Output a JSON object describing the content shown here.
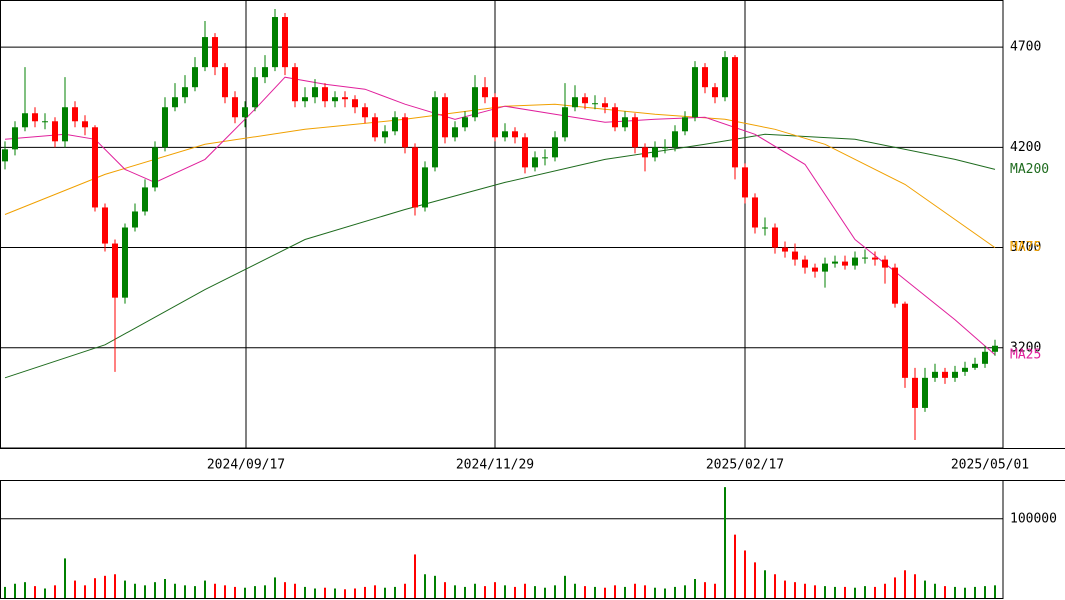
{
  "chart_data": [
    {
      "type": "candlestick",
      "x": [
        0,
        1,
        2,
        3,
        4,
        5,
        6,
        7,
        8,
        9,
        10,
        11,
        12,
        13,
        14,
        15,
        16,
        17,
        18,
        19,
        20,
        21,
        22,
        23,
        24,
        25,
        26,
        27,
        28,
        29,
        30,
        31,
        32,
        33,
        34,
        35,
        36,
        37,
        38,
        39,
        40,
        41,
        42,
        43,
        44,
        45,
        46,
        47,
        48,
        49,
        50,
        51,
        52,
        53,
        54,
        55,
        56,
        57,
        58,
        59,
        60,
        61,
        62,
        63,
        64,
        65,
        66,
        67,
        68,
        69,
        70,
        71,
        72,
        73,
        74,
        75,
        76,
        77,
        78,
        79,
        80,
        81,
        82,
        83,
        84,
        85,
        86,
        87,
        88,
        89,
        90,
        91,
        92,
        93,
        94,
        95,
        96,
        97,
        98,
        99
      ],
      "open": [
        4130,
        4190,
        4300,
        4370,
        4330,
        4330,
        4230,
        4400,
        4330,
        4300,
        3900,
        3720,
        3450,
        3800,
        3880,
        4000,
        4200,
        4400,
        4450,
        4500,
        4600,
        4750,
        4600,
        4450,
        4350,
        4400,
        4550,
        4600,
        4850,
        4600,
        4430,
        4450,
        4500,
        4430,
        4450,
        4440,
        4400,
        4350,
        4250,
        4280,
        4350,
        4200,
        3900,
        4100,
        4450,
        4250,
        4300,
        4350,
        4500,
        4450,
        4250,
        4280,
        4250,
        4100,
        4150,
        4150,
        4250,
        4400,
        4450,
        4420,
        4420,
        4400,
        4300,
        4350,
        4200,
        4150,
        4200,
        4200,
        4280,
        4350,
        4600,
        4500,
        4450,
        4650,
        4100,
        3950,
        3800,
        3800,
        3700,
        3680,
        3640,
        3600,
        3580,
        3620,
        3630,
        3610,
        3650,
        3650,
        3640,
        3600,
        3420,
        3050,
        2900,
        3050,
        3080,
        3050,
        3080,
        3100,
        3120,
        3180
      ],
      "high": [
        4230,
        4330,
        4600,
        4400,
        4370,
        4350,
        4550,
        4430,
        4360,
        4310,
        3920,
        3740,
        3820,
        3920,
        4040,
        4230,
        4450,
        4520,
        4560,
        4650,
        4830,
        4770,
        4620,
        4480,
        4430,
        4600,
        4660,
        4890,
        4870,
        4620,
        4500,
        4540,
        4520,
        4480,
        4480,
        4460,
        4420,
        4370,
        4310,
        4380,
        4370,
        4220,
        4130,
        4480,
        4470,
        4330,
        4380,
        4560,
        4550,
        4470,
        4320,
        4300,
        4270,
        4180,
        4190,
        4280,
        4520,
        4510,
        4470,
        4460,
        4450,
        4420,
        4380,
        4370,
        4220,
        4230,
        4240,
        4310,
        4380,
        4630,
        4620,
        4520,
        4680,
        4660,
        4120,
        3970,
        3850,
        3820,
        3730,
        3720,
        3660,
        3620,
        3650,
        3660,
        3660,
        3680,
        3690,
        3680,
        3660,
        3620,
        3430,
        3100,
        3100,
        3120,
        3100,
        3110,
        3130,
        3150,
        3210,
        3240
      ],
      "low": [
        4090,
        4160,
        4280,
        4300,
        4290,
        4200,
        4200,
        4300,
        4260,
        3880,
        3680,
        3080,
        3420,
        3780,
        3860,
        3980,
        4180,
        4380,
        4420,
        4480,
        4580,
        4560,
        4420,
        4320,
        4300,
        4380,
        4520,
        4580,
        4560,
        4400,
        4400,
        4420,
        4400,
        4400,
        4400,
        4370,
        4320,
        4230,
        4220,
        4260,
        4170,
        3860,
        3880,
        4080,
        4220,
        4230,
        4280,
        4330,
        4420,
        4230,
        4230,
        4220,
        4070,
        4080,
        4110,
        4130,
        4230,
        4380,
        4390,
        4390,
        4370,
        4280,
        4280,
        4170,
        4080,
        4130,
        4170,
        4180,
        4260,
        4330,
        4470,
        4420,
        4430,
        4040,
        3920,
        3770,
        3760,
        3670,
        3650,
        3610,
        3570,
        3550,
        3500,
        3600,
        3590,
        3590,
        3620,
        3610,
        3520,
        3400,
        3000,
        2740,
        2880,
        3030,
        3020,
        3030,
        3060,
        3090,
        3100,
        3160
      ],
      "close": [
        4190,
        4300,
        4370,
        4330,
        4330,
        4230,
        4400,
        4330,
        4300,
        3900,
        3720,
        3450,
        3800,
        3880,
        4000,
        4200,
        4400,
        4450,
        4500,
        4600,
        4750,
        4600,
        4450,
        4350,
        4400,
        4550,
        4600,
        4850,
        4600,
        4430,
        4450,
        4500,
        4430,
        4450,
        4440,
        4400,
        4350,
        4250,
        4280,
        4350,
        4200,
        3900,
        4100,
        4450,
        4250,
        4300,
        4350,
        4500,
        4450,
        4250,
        4280,
        4250,
        4100,
        4150,
        4150,
        4250,
        4400,
        4450,
        4420,
        4420,
        4400,
        4300,
        4350,
        4200,
        4150,
        4200,
        4200,
        4280,
        4350,
        4600,
        4500,
        4450,
        4650,
        4100,
        3950,
        3800,
        3800,
        3700,
        3680,
        3640,
        3600,
        3580,
        3620,
        3630,
        3610,
        3650,
        3650,
        3640,
        3600,
        3420,
        3050,
        2900,
        3050,
        3080,
        3050,
        3080,
        3100,
        3120,
        3180,
        3210
      ],
      "up_color": "#008000",
      "down_color": "#ff0000",
      "series": [
        {
          "name": "MA200",
          "color": "#1e6b1e",
          "x": [
            0,
            10,
            20,
            30,
            40,
            50,
            60,
            70,
            76,
            85,
            95,
            99
          ],
          "values": [
            3050,
            3215,
            3490,
            3740,
            3890,
            4025,
            4140,
            4215,
            4265,
            4240,
            4140,
            4090
          ]
        },
        {
          "name": "MA75",
          "color": "#f0a000",
          "x": [
            0,
            10,
            20,
            30,
            40,
            50,
            55,
            65,
            72,
            77,
            82,
            90,
            95,
            99
          ],
          "values": [
            3865,
            4065,
            4215,
            4290,
            4340,
            4405,
            4415,
            4365,
            4340,
            4290,
            4215,
            4015,
            3840,
            3700
          ]
        },
        {
          "name": "MA25",
          "color": "#e0209c",
          "x": [
            0,
            6,
            9,
            12,
            15,
            20,
            25,
            28,
            32,
            36,
            40,
            45,
            50,
            55,
            60,
            65,
            70,
            75,
            80,
            85,
            90,
            95,
            99
          ],
          "values": [
            4240,
            4265,
            4240,
            4090,
            4025,
            4140,
            4390,
            4550,
            4515,
            4490,
            4415,
            4340,
            4405,
            4365,
            4325,
            4340,
            4350,
            4265,
            4115,
            3740,
            3540,
            3340,
            3165
          ]
        }
      ],
      "xlim": [
        -0.5,
        99.8
      ],
      "xticks": [
        {
          "value": 24.1,
          "label": "2024/09/17"
        },
        {
          "value": 49,
          "label": "2024/11/29"
        },
        {
          "value": 74,
          "label": "2025/02/17"
        },
        {
          "value": 99.8,
          "label": "2025/05/01"
        }
      ],
      "ylim": [
        2700,
        4935
      ],
      "yticks": [
        3200,
        3700,
        4200,
        4700
      ],
      "grid": true
    },
    {
      "type": "bar",
      "x": [
        0,
        1,
        2,
        3,
        4,
        5,
        6,
        7,
        8,
        9,
        10,
        11,
        12,
        13,
        14,
        15,
        16,
        17,
        18,
        19,
        20,
        21,
        22,
        23,
        24,
        25,
        26,
        27,
        28,
        29,
        30,
        31,
        32,
        33,
        34,
        35,
        36,
        37,
        38,
        39,
        40,
        41,
        42,
        43,
        44,
        45,
        46,
        47,
        48,
        49,
        50,
        51,
        52,
        53,
        54,
        55,
        56,
        57,
        58,
        59,
        60,
        61,
        62,
        63,
        64,
        65,
        66,
        67,
        68,
        69,
        70,
        71,
        72,
        73,
        74,
        75,
        76,
        77,
        78,
        79,
        80,
        81,
        82,
        83,
        84,
        85,
        86,
        87,
        88,
        89,
        90,
        91,
        92,
        93,
        94,
        95,
        96,
        97,
        98,
        99
      ],
      "values": [
        14000,
        18000,
        20000,
        15000,
        12000,
        16000,
        50000,
        22000,
        16000,
        25000,
        28000,
        30000,
        22000,
        18000,
        16000,
        20000,
        24000,
        18000,
        16000,
        15000,
        22000,
        18000,
        16000,
        14000,
        13000,
        15000,
        16000,
        26000,
        20000,
        18000,
        14000,
        12000,
        13000,
        12000,
        11000,
        12000,
        14000,
        16000,
        13000,
        14000,
        18000,
        55000,
        30000,
        28000,
        20000,
        16000,
        14000,
        18000,
        15000,
        20000,
        16000,
        14000,
        18000,
        15000,
        13000,
        16000,
        28000,
        18000,
        15000,
        14000,
        13000,
        16000,
        14000,
        18000,
        16000,
        13000,
        12000,
        14000,
        16000,
        24000,
        20000,
        18000,
        140000,
        80000,
        60000,
        45000,
        35000,
        30000,
        22000,
        20000,
        18000,
        16000,
        15000,
        14000,
        14000,
        13000,
        15000,
        14000,
        18000,
        26000,
        35000,
        30000,
        22000,
        18000,
        15000,
        14000,
        13000,
        14000,
        15000,
        16000
      ],
      "xlim": [
        -0.5,
        99.8
      ],
      "ylim": [
        0,
        149000
      ],
      "yticks": [
        100000
      ],
      "grid": true
    }
  ]
}
